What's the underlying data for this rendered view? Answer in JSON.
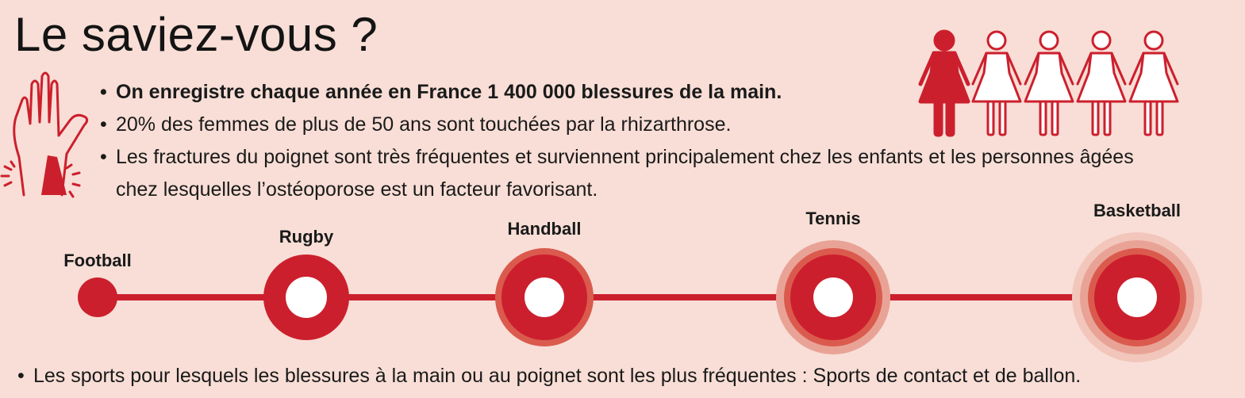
{
  "title": "Le saviez-vous ?",
  "facts": [
    "On enregistre chaque année en France 1 400 000 blessures de la main.",
    "20% des femmes de plus de 50 ans sont touchées par la rhizarthrose.",
    "Les fractures du poignet sont très fréquentes et surviennent principalement chez les enfants et les personnes âgées chez lesquelles l’ostéoporose est un facteur favorisant."
  ],
  "icons": {
    "hand": "hand-injury-icon",
    "women": "women-group-icon"
  },
  "women_group": {
    "total": 5,
    "highlighted": 1
  },
  "sports": [
    {
      "name": "Football",
      "level": 1
    },
    {
      "name": "Rugby",
      "level": 2
    },
    {
      "name": "Handball",
      "level": 3
    },
    {
      "name": "Tennis",
      "level": 4
    },
    {
      "name": "Basketball",
      "level": 5
    }
  ],
  "bottom_note": "Les sports pour lesquels les blessures à la main ou au poignet sont les plus fréquentes : Sports de contact et de ballon.",
  "colors": {
    "background": "#f8ded6",
    "accent": "#cc1f2d",
    "ring_mid": "#db5a4e",
    "ring_outer": "#e9a396",
    "ring_faint": "#f2c6bb",
    "text": "#1a1a1a"
  }
}
